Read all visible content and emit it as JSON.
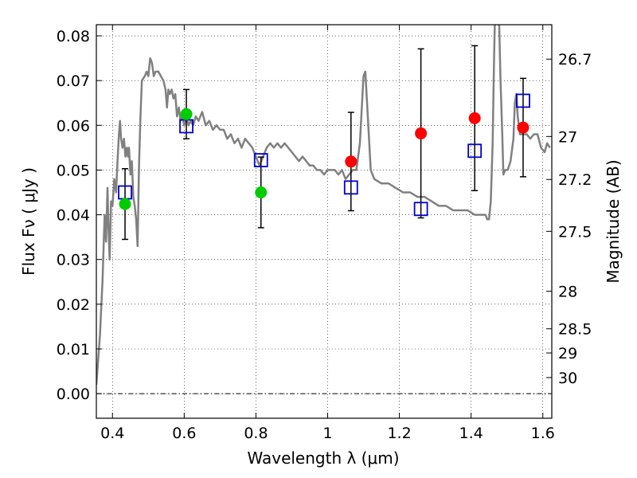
{
  "chart_data": {
    "type": "scatter",
    "xlabel": "Wavelength  λ (μm)",
    "ylabel": "Flux  Fν  ( μJy )",
    "ylabel_right": "Magnitude (AB)",
    "xlim": [
      0.355,
      1.625
    ],
    "ylim": [
      -0.0055,
      0.0825
    ],
    "grid": true,
    "x_ticks": [
      0.4,
      0.6,
      0.8,
      1.0,
      1.2,
      1.4,
      1.6
    ],
    "x_tick_labels": [
      "0.4",
      "0.6",
      "0.8",
      "1",
      "1.2",
      "1.4",
      "1.6"
    ],
    "y_ticks": [
      0.0,
      0.01,
      0.02,
      0.03,
      0.04,
      0.05,
      0.06,
      0.07,
      0.08
    ],
    "y_tick_labels": [
      "0.00",
      "0.01",
      "0.02",
      "0.03",
      "0.04",
      "0.05",
      "0.06",
      "0.07",
      "0.08"
    ],
    "right_axis_ticks": [
      {
        "label": "26.7",
        "flux": 0.0748
      },
      {
        "label": "27",
        "flux": 0.0575
      },
      {
        "label": "27.2",
        "flux": 0.0479
      },
      {
        "label": "27.5",
        "flux": 0.0363
      },
      {
        "label": "28",
        "flux": 0.0229
      },
      {
        "label": "28.5",
        "flux": 0.0145
      },
      {
        "label": "29",
        "flux": 0.0091
      },
      {
        "label": "30",
        "flux": 0.0036
      }
    ],
    "zero_line": 0.0,
    "colors": {
      "spectrum": "#808080",
      "green_points": "#00cc00",
      "red_points": "#ff0000",
      "model_squares": "#0000cc",
      "error_bars": "#000000"
    },
    "series": [
      {
        "kind": "line",
        "points": [
          [
            0.355,
            0.002
          ],
          [
            0.365,
            0.013
          ],
          [
            0.372,
            0.025
          ],
          [
            0.378,
            0.04
          ],
          [
            0.382,
            0.034
          ],
          [
            0.386,
            0.046
          ],
          [
            0.389,
            0.037
          ],
          [
            0.392,
            0.03
          ],
          [
            0.396,
            0.043
          ],
          [
            0.4,
            0.042
          ],
          [
            0.405,
            0.048
          ],
          [
            0.41,
            0.045
          ],
          [
            0.414,
            0.052
          ],
          [
            0.418,
            0.058
          ],
          [
            0.421,
            0.061
          ],
          [
            0.424,
            0.057
          ],
          [
            0.428,
            0.055
          ],
          [
            0.432,
            0.057
          ],
          [
            0.436,
            0.053
          ],
          [
            0.44,
            0.055
          ],
          [
            0.443,
            0.053
          ],
          [
            0.446,
            0.055
          ],
          [
            0.45,
            0.049
          ],
          [
            0.454,
            0.052
          ],
          [
            0.458,
            0.044
          ],
          [
            0.462,
            0.042
          ],
          [
            0.466,
            0.039
          ],
          [
            0.47,
            0.033
          ],
          [
            0.474,
            0.051
          ],
          [
            0.478,
            0.062
          ],
          [
            0.482,
            0.07
          ],
          [
            0.49,
            0.071
          ],
          [
            0.495,
            0.072
          ],
          [
            0.5,
            0.071
          ],
          [
            0.505,
            0.075
          ],
          [
            0.51,
            0.074
          ],
          [
            0.515,
            0.071
          ],
          [
            0.52,
            0.072
          ],
          [
            0.528,
            0.072
          ],
          [
            0.535,
            0.071
          ],
          [
            0.542,
            0.07
          ],
          [
            0.548,
            0.068
          ],
          [
            0.552,
            0.064
          ],
          [
            0.556,
            0.068
          ],
          [
            0.56,
            0.067
          ],
          [
            0.565,
            0.068
          ],
          [
            0.57,
            0.066
          ],
          [
            0.575,
            0.067
          ],
          [
            0.58,
            0.062
          ],
          [
            0.585,
            0.064
          ],
          [
            0.59,
            0.061
          ],
          [
            0.595,
            0.062
          ],
          [
            0.6,
            0.06
          ],
          [
            0.606,
            0.062
          ],
          [
            0.612,
            0.06
          ],
          [
            0.618,
            0.061
          ],
          [
            0.625,
            0.06
          ],
          [
            0.632,
            0.062
          ],
          [
            0.64,
            0.061
          ],
          [
            0.65,
            0.063
          ],
          [
            0.66,
            0.06
          ],
          [
            0.67,
            0.061
          ],
          [
            0.68,
            0.059
          ],
          [
            0.69,
            0.06
          ],
          [
            0.7,
            0.059
          ],
          [
            0.71,
            0.059
          ],
          [
            0.72,
            0.057
          ],
          [
            0.73,
            0.058
          ],
          [
            0.74,
            0.056
          ],
          [
            0.75,
            0.057
          ],
          [
            0.76,
            0.055
          ],
          [
            0.77,
            0.057
          ],
          [
            0.78,
            0.056
          ],
          [
            0.79,
            0.055
          ],
          [
            0.8,
            0.053
          ],
          [
            0.81,
            0.051
          ],
          [
            0.82,
            0.053
          ],
          [
            0.83,
            0.055
          ],
          [
            0.84,
            0.056
          ],
          [
            0.85,
            0.055
          ],
          [
            0.86,
            0.056
          ],
          [
            0.87,
            0.055
          ],
          [
            0.88,
            0.056
          ],
          [
            0.89,
            0.055
          ],
          [
            0.9,
            0.054
          ],
          [
            0.91,
            0.053
          ],
          [
            0.92,
            0.052
          ],
          [
            0.93,
            0.053
          ],
          [
            0.94,
            0.052
          ],
          [
            0.95,
            0.051
          ],
          [
            0.96,
            0.051
          ],
          [
            0.97,
            0.05
          ],
          [
            0.98,
            0.05
          ],
          [
            0.99,
            0.049
          ],
          [
            1.0,
            0.05
          ],
          [
            1.01,
            0.05
          ],
          [
            1.02,
            0.05
          ],
          [
            1.03,
            0.049
          ],
          [
            1.04,
            0.05
          ],
          [
            1.05,
            0.048
          ],
          [
            1.06,
            0.049
          ],
          [
            1.07,
            0.05
          ],
          [
            1.08,
            0.05
          ],
          [
            1.09,
            0.056
          ],
          [
            1.1,
            0.071
          ],
          [
            1.105,
            0.072
          ],
          [
            1.11,
            0.065
          ],
          [
            1.12,
            0.05
          ],
          [
            1.13,
            0.048
          ],
          [
            1.15,
            0.047
          ],
          [
            1.17,
            0.047
          ],
          [
            1.19,
            0.046
          ],
          [
            1.21,
            0.045
          ],
          [
            1.23,
            0.045
          ],
          [
            1.25,
            0.044
          ],
          [
            1.27,
            0.044
          ],
          [
            1.29,
            0.043
          ],
          [
            1.31,
            0.042
          ],
          [
            1.33,
            0.042
          ],
          [
            1.35,
            0.041
          ],
          [
            1.37,
            0.041
          ],
          [
            1.39,
            0.041
          ],
          [
            1.41,
            0.04
          ],
          [
            1.43,
            0.04
          ],
          [
            1.44,
            0.04
          ],
          [
            1.445,
            0.039
          ],
          [
            1.45,
            0.039
          ],
          [
            1.455,
            0.043
          ],
          [
            1.46,
            0.056
          ],
          [
            1.464,
            0.075
          ],
          [
            1.468,
            0.09
          ],
          [
            1.472,
            0.1
          ],
          [
            1.476,
            0.09
          ],
          [
            1.482,
            0.07
          ],
          [
            1.487,
            0.058
          ],
          [
            1.49,
            0.049
          ],
          [
            1.495,
            0.05
          ],
          [
            1.502,
            0.05
          ],
          [
            1.51,
            0.052
          ],
          [
            1.518,
            0.057
          ],
          [
            1.522,
            0.065
          ],
          [
            1.526,
            0.067
          ],
          [
            1.53,
            0.062
          ],
          [
            1.536,
            0.058
          ],
          [
            1.545,
            0.058
          ],
          [
            1.555,
            0.058
          ],
          [
            1.565,
            0.057
          ],
          [
            1.575,
            0.058
          ],
          [
            1.585,
            0.058
          ],
          [
            1.595,
            0.055
          ],
          [
            1.605,
            0.054
          ],
          [
            1.612,
            0.056
          ],
          [
            1.62,
            0.055
          ]
        ]
      },
      {
        "kind": "green_points",
        "points": [
          {
            "x": 0.435,
            "y": 0.0424,
            "err_low": 0.0079,
            "err_high": 0.0079
          },
          {
            "x": 0.606,
            "y": 0.0625,
            "err_low": 0.0055,
            "err_high": 0.0055
          },
          {
            "x": 0.814,
            "y": 0.045,
            "err_low": 0.0079,
            "err_high": 0.0079
          }
        ]
      },
      {
        "kind": "red_points",
        "points": [
          {
            "x": 1.065,
            "y": 0.0519,
            "err_low": 0.011,
            "err_high": 0.011
          },
          {
            "x": 1.26,
            "y": 0.0582,
            "err_low": 0.0189,
            "err_high": 0.0189
          },
          {
            "x": 1.41,
            "y": 0.0616,
            "err_low": 0.0162,
            "err_high": 0.0162
          },
          {
            "x": 1.545,
            "y": 0.0595,
            "err_low": 0.011,
            "err_high": 0.011
          }
        ]
      },
      {
        "kind": "model_squares",
        "points": [
          {
            "x": 0.435,
            "y": 0.045
          },
          {
            "x": 0.606,
            "y": 0.0598
          },
          {
            "x": 0.814,
            "y": 0.0522
          },
          {
            "x": 1.065,
            "y": 0.0461
          },
          {
            "x": 1.26,
            "y": 0.0413
          },
          {
            "x": 1.41,
            "y": 0.0543
          },
          {
            "x": 1.545,
            "y": 0.0655
          }
        ]
      }
    ]
  }
}
